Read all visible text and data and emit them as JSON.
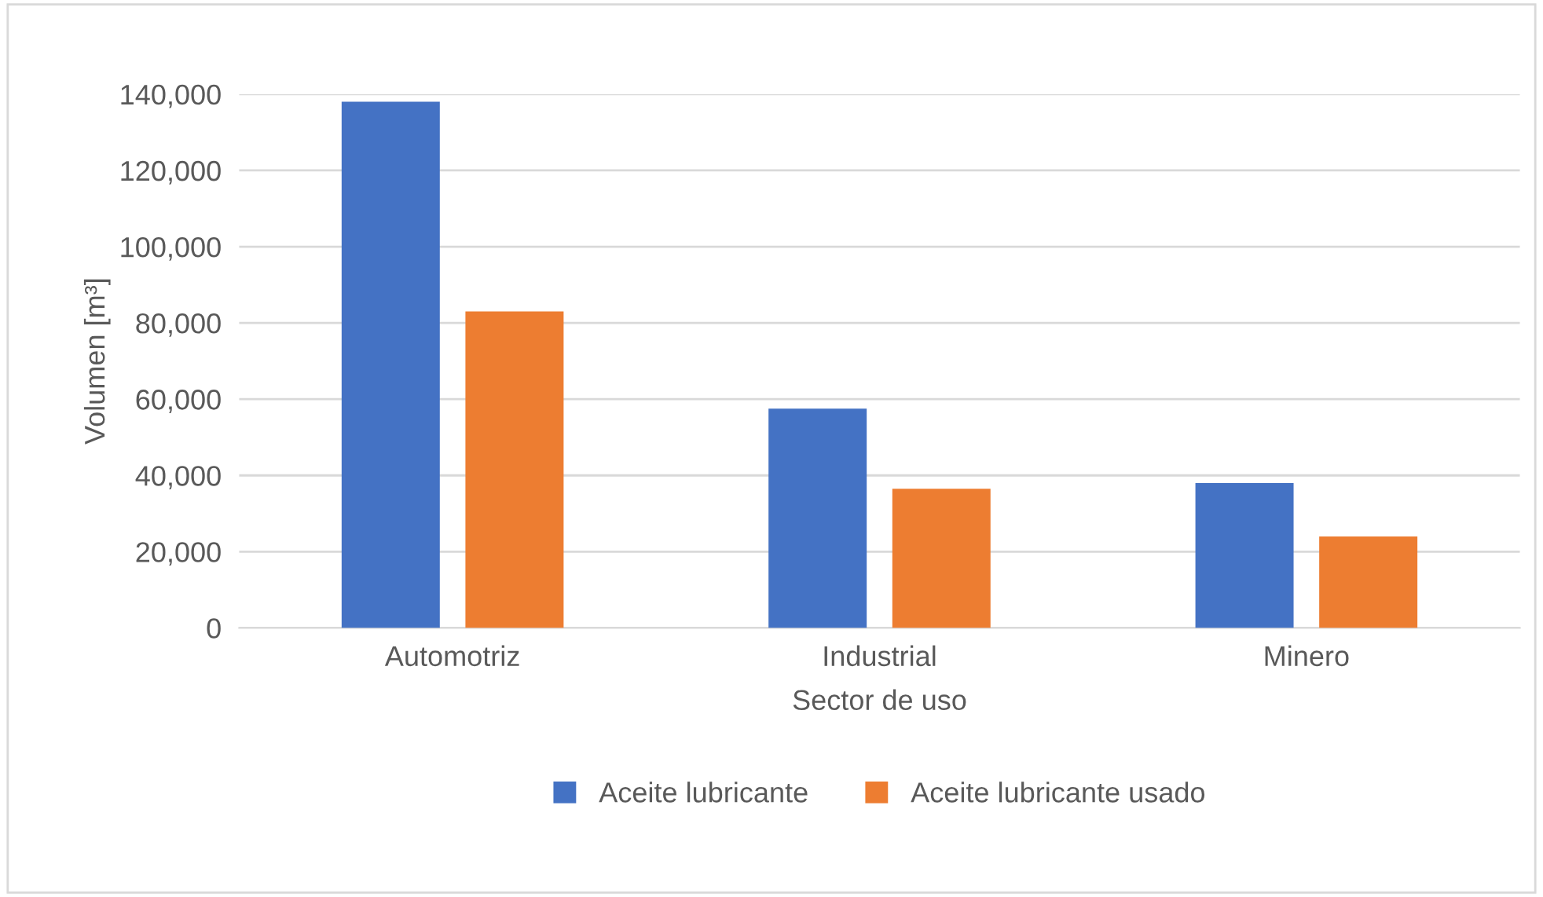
{
  "chart_data": {
    "type": "bar",
    "xlabel": "Sector de uso",
    "ylabel": "Volumen [m³]",
    "categories": [
      "Automotriz",
      "Industrial",
      "Minero"
    ],
    "series": [
      {
        "name": "Aceite lubricante",
        "color": "#4472c4",
        "values": [
          138000,
          57500,
          38000
        ]
      },
      {
        "name": "Aceite lubricante usado",
        "color": "#ed7d31",
        "values": [
          83000,
          36500,
          24000
        ]
      }
    ],
    "ylim": [
      0,
      140000
    ],
    "yticks": [
      {
        "value": 0,
        "label": "0"
      },
      {
        "value": 20000,
        "label": "20,000"
      },
      {
        "value": 40000,
        "label": "40,000"
      },
      {
        "value": 60000,
        "label": "60,000"
      },
      {
        "value": 80000,
        "label": "80,000"
      },
      {
        "value": 100000,
        "label": "100,000"
      },
      {
        "value": 120000,
        "label": "120,000"
      },
      {
        "value": 140000,
        "label": "140,000"
      }
    ],
    "grid": "y",
    "legend": "bottom"
  }
}
